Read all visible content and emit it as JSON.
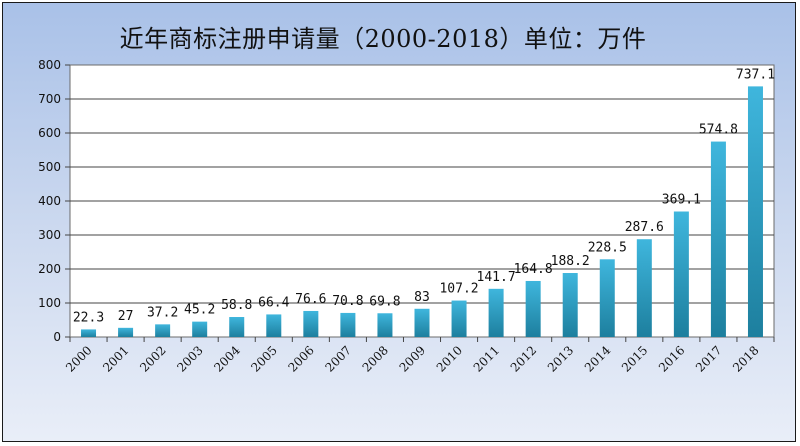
{
  "chart_data": {
    "type": "bar",
    "title": "近年商标注册申请量（2000-2018）单位：万件",
    "categories": [
      "2000",
      "2001",
      "2002",
      "2003",
      "2004",
      "2005",
      "2006",
      "2007",
      "2008",
      "2009",
      "2010",
      "2011",
      "2012",
      "2013",
      "2014",
      "2015",
      "2016",
      "2017",
      "2018"
    ],
    "values": [
      22.3,
      27,
      37.2,
      45.2,
      58.8,
      66.4,
      76.6,
      70.8,
      69.8,
      83,
      107.2,
      141.7,
      164.8,
      188.2,
      228.5,
      287.6,
      369.1,
      574.8,
      737.1
    ],
    "data_labels": [
      "22.3",
      "27",
      "37.2",
      "45.2",
      "58.8",
      "66.4",
      "76.6",
      "70.8",
      "69.8",
      "83",
      "107.2",
      "141.7",
      "164.8",
      "188.2",
      "228.5",
      "287.6",
      "369.1",
      "574.8",
      "737.1"
    ],
    "ylim": [
      0,
      800
    ],
    "yticks": [
      0,
      100,
      200,
      300,
      400,
      500,
      600,
      700,
      800
    ],
    "xlabel": "",
    "ylabel": "",
    "grid": true,
    "bar_color_top": "#3fb6dd",
    "bar_color_bottom": "#1d7f9e"
  }
}
